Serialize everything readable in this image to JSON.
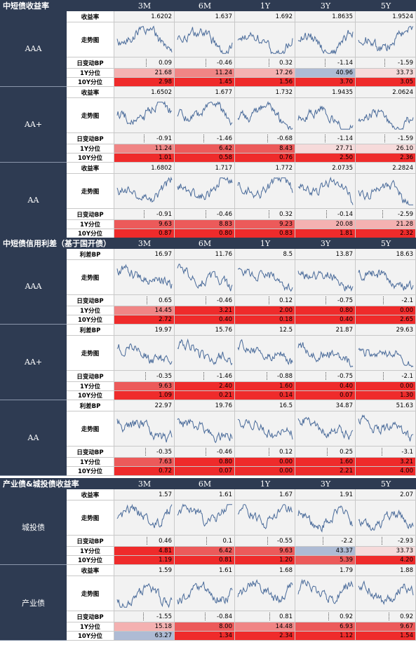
{
  "tenors": [
    "3M",
    "6M",
    "1Y",
    "3Y",
    "5Y"
  ],
  "sections": [
    {
      "title": "中短债收益率",
      "groups": [
        {
          "name": "AAA",
          "value_label": "收益率",
          "values": [
            "1.6202",
            "1.637",
            "1.692",
            "1.8635",
            "1.9524"
          ],
          "change_label": "日变动BP",
          "changes": [
            "0.09",
            "-0.46",
            "0.32",
            "-1.14",
            "-1.59"
          ],
          "p1_label": "1Y分位",
          "p1": [
            "21.68",
            "11.24",
            "17.26",
            "40.96",
            "33.73"
          ],
          "p10_label": "10Y分位",
          "p10": [
            "2.98",
            "1.45",
            "1.56",
            "3.70",
            "3.05"
          ]
        },
        {
          "name": "AA+",
          "value_label": "收益率",
          "values": [
            "1.6502",
            "1.677",
            "1.732",
            "1.9435",
            "2.0624"
          ],
          "change_label": "日变动BP",
          "changes": [
            "-0.91",
            "-1.46",
            "-0.68",
            "-1.14",
            "-1.59"
          ],
          "p1_label": "1Y分位",
          "p1": [
            "11.24",
            "6.42",
            "8.43",
            "27.71",
            "26.10"
          ],
          "p10_label": "10Y分位",
          "p10": [
            "1.01",
            "0.58",
            "0.76",
            "2.50",
            "2.36"
          ]
        },
        {
          "name": "AA",
          "value_label": "收益率",
          "values": [
            "1.6802",
            "1.717",
            "1.772",
            "2.0735",
            "2.2824"
          ],
          "change_label": "日变动BP",
          "changes": [
            "-0.91",
            "-0.46",
            "0.32",
            "-0.14",
            "-2.59"
          ],
          "p1_label": "1Y分位",
          "p1": [
            "9.63",
            "8.83",
            "9.23",
            "20.08",
            "21.28"
          ],
          "p10_label": "10Y分位",
          "p10": [
            "0.87",
            "0.80",
            "0.83",
            "1.81",
            "2.32"
          ]
        }
      ]
    },
    {
      "title": "中短债信用利差（基于国开债）",
      "groups": [
        {
          "name": "AAA",
          "value_label": "利差BP",
          "values": [
            "16.97",
            "11.76",
            "8.5",
            "13.87",
            "18.63"
          ],
          "change_label": "日变动BP",
          "changes": [
            "0.65",
            "-0.46",
            "0.12",
            "-0.75",
            "-2.1"
          ],
          "p1_label": "1Y分位",
          "p1": [
            "14.45",
            "3.21",
            "2.00",
            "0.80",
            "0.00"
          ],
          "p10_label": "10Y分位",
          "p10": [
            "2.72",
            "0.40",
            "0.18",
            "0.40",
            "2.65"
          ]
        },
        {
          "name": "AA+",
          "value_label": "利差BP",
          "values": [
            "19.97",
            "15.76",
            "12.5",
            "21.87",
            "29.63"
          ],
          "change_label": "日变动BP",
          "changes": [
            "-0.35",
            "-1.46",
            "-0.88",
            "-0.75",
            "-2.1"
          ],
          "p1_label": "1Y分位",
          "p1": [
            "9.63",
            "2.40",
            "1.60",
            "0.40",
            "0.00"
          ],
          "p10_label": "10Y分位",
          "p10": [
            "1.09",
            "0.21",
            "0.14",
            "0.07",
            "1.30"
          ]
        },
        {
          "name": "AA",
          "value_label": "利差BP",
          "values": [
            "22.97",
            "19.76",
            "16.5",
            "34.87",
            "51.63"
          ],
          "change_label": "日变动BP",
          "changes": [
            "-0.35",
            "-0.46",
            "0.12",
            "0.25",
            "-3.1"
          ],
          "p1_label": "1Y分位",
          "p1": [
            "7.63",
            "0.80",
            "0.00",
            "1.60",
            "3.21"
          ],
          "p10_label": "10Y分位",
          "p10": [
            "0.72",
            "0.07",
            "0.00",
            "2.21",
            "4.00"
          ]
        }
      ]
    },
    {
      "title": "产业债&城投债收益率",
      "groups": [
        {
          "name": "城投债",
          "value_label": "收益率",
          "values": [
            "1.57",
            "1.61",
            "1.67",
            "1.91",
            "2.07"
          ],
          "change_label": "日变动BP",
          "changes": [
            "0.46",
            "0.1",
            "-0.55",
            "-2.2",
            "-2.93"
          ],
          "p1_label": "1Y分位",
          "p1": [
            "4.81",
            "6.42",
            "9.63",
            "43.37",
            "33.73"
          ],
          "p10_label": "10Y分位",
          "p10": [
            "1.19",
            "0.81",
            "1.20",
            "5.39",
            "4.20"
          ]
        },
        {
          "name": "产业债",
          "value_label": "收益率",
          "values": [
            "1.59",
            "1.61",
            "1.68",
            "1.79",
            "1.88"
          ],
          "change_label": "日变动BP",
          "changes": [
            "-1.55",
            "-0.84",
            "0.81",
            "0.92",
            "0.92"
          ],
          "p1_label": "1Y分位",
          "p1": [
            "15.18",
            "8.00",
            "14.48",
            "6.93",
            "9.67"
          ],
          "p10_label": "10Y分位",
          "p10": [
            "63.27",
            "1.34",
            "2.34",
            "1.12",
            "1.54"
          ]
        }
      ]
    }
  ],
  "trend_label": "走势图",
  "chart_data": {
    "type": "table",
    "columns": [
      "3M",
      "6M",
      "1Y",
      "3Y",
      "5Y"
    ],
    "colors": {
      "header": "#2e3b52",
      "cell": "#f2f2f2",
      "line": "#4a6b9a",
      "low_percentile": "#ef2b2b",
      "mid_percentile": "#f4a0a0",
      "high_percentile": "#aebbd4"
    }
  }
}
